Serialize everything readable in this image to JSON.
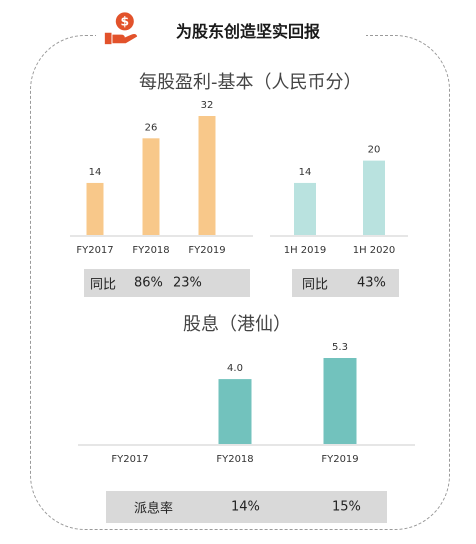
{
  "header": {
    "title": "为股东创造坚实回报",
    "icon": "hand-holding-dollar-icon",
    "icon_color": "#e2522b"
  },
  "colors": {
    "eps_fy": "#f8c88a",
    "eps_1h": "#b9e2df",
    "dividend": "#72c2bd",
    "yoy_box": "#d9d9d9",
    "frame": "#9a9a9a"
  },
  "eps_section": {
    "title": "每股盈利-基本（人民币分）"
  },
  "dividend_section": {
    "title": "股息（港仙）"
  },
  "yoy_eps_fy": {
    "label": "同比",
    "values": [
      "86%",
      "23%"
    ]
  },
  "yoy_eps_1h": {
    "label": "同比",
    "values": [
      "43%"
    ]
  },
  "yoy_dividend": {
    "label": "派息率",
    "values": [
      "14%",
      "15%"
    ]
  },
  "chart_data": [
    {
      "type": "bar",
      "title": "每股盈利-基本（人民币分）",
      "categories": [
        "FY2017",
        "FY2018",
        "FY2019"
      ],
      "values": [
        14,
        26,
        32
      ],
      "data_labels": [
        "14",
        "26",
        "32"
      ],
      "ylim": [
        0,
        32
      ]
    },
    {
      "type": "bar",
      "categories": [
        "1H 2019",
        "1H 2020"
      ],
      "values": [
        14,
        20
      ],
      "data_labels": [
        "14",
        "20"
      ],
      "ylim": [
        0,
        32
      ]
    },
    {
      "type": "bar",
      "title": "股息（港仙）",
      "categories": [
        "FY2017",
        "FY2018",
        "FY2019"
      ],
      "values": [
        null,
        4.0,
        5.3
      ],
      "data_labels": [
        "",
        "4.0",
        "5.3"
      ],
      "ylim": [
        0,
        5.3
      ]
    }
  ]
}
